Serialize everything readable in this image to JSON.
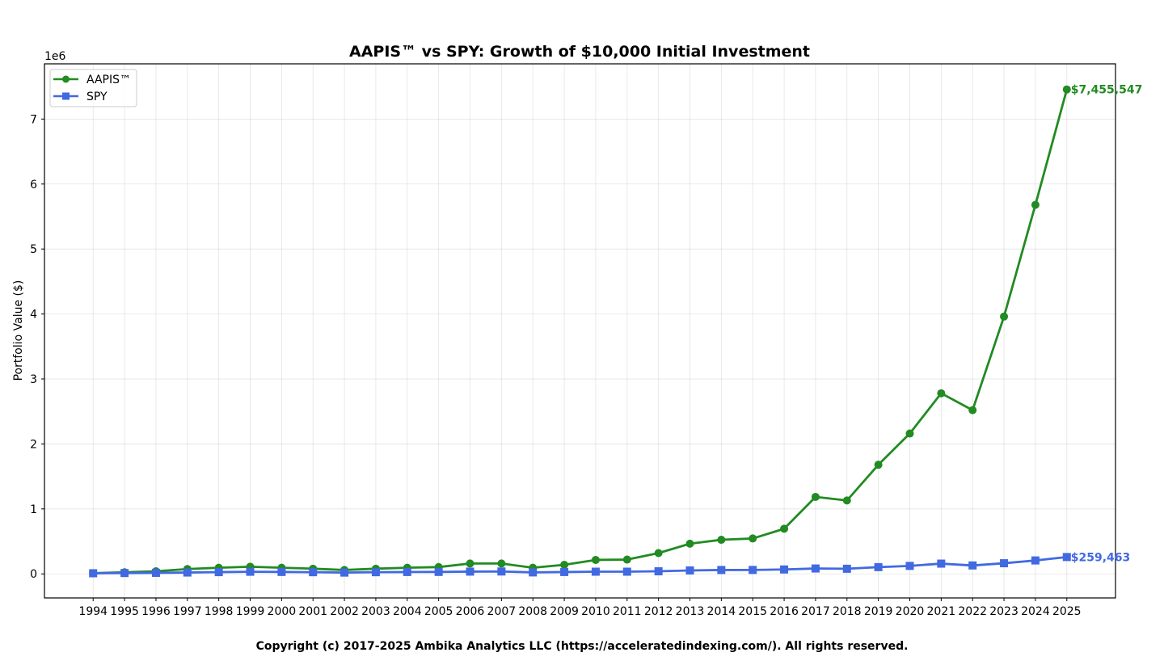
{
  "chart_data": {
    "type": "line",
    "title": "AAPIS™ vs SPY: Growth of $10,000 Initial Investment",
    "xlabel": "",
    "ylabel": "Portfolio Value ($)",
    "y_offset_label": "1e6",
    "y_scale_factor": 1000000,
    "ylim": [
      -370000,
      7850000
    ],
    "xlim": [
      1992.45,
      2026.55
    ],
    "y_ticks": [
      0,
      1,
      2,
      3,
      4,
      5,
      6,
      7
    ],
    "grid": true,
    "legend_position": "top-left",
    "x": [
      1994,
      1995,
      1996,
      1997,
      1998,
      1999,
      2000,
      2001,
      2002,
      2003,
      2004,
      2005,
      2006,
      2007,
      2008,
      2009,
      2010,
      2011,
      2012,
      2013,
      2014,
      2015,
      2016,
      2017,
      2018,
      2019,
      2020,
      2021,
      2022,
      2023,
      2024,
      2025
    ],
    "series": [
      {
        "name": "AAPIS™",
        "color": "#228b22",
        "marker": "circle",
        "values": [
          10000,
          25000,
          40000,
          75000,
          95000,
          110000,
          95000,
          80000,
          60000,
          80000,
          95000,
          105000,
          160000,
          160000,
          95000,
          140000,
          215000,
          220000,
          320000,
          465000,
          525000,
          545000,
          695000,
          1185000,
          1130000,
          1680000,
          2160000,
          2780000,
          2520000,
          3960000,
          5680000,
          7455547
        ]
      },
      {
        "name": "SPY",
        "color": "#4169e1",
        "marker": "square",
        "values": [
          10000,
          13000,
          16000,
          21000,
          27000,
          33000,
          30000,
          26000,
          20000,
          26000,
          29000,
          30000,
          35000,
          37000,
          23000,
          29000,
          34000,
          34000,
          40000,
          53000,
          60000,
          61000,
          68000,
          83000,
          79000,
          104000,
          123000,
          158000,
          130000,
          164000,
          207000,
          259463
        ]
      }
    ],
    "annotations": [
      {
        "series": "AAPIS™",
        "x": 2025,
        "text": "$7,455,547"
      },
      {
        "series": "SPY",
        "x": 2025,
        "text": "$259,463"
      }
    ]
  },
  "footer": "Copyright (c) 2017-2025 Ambika Analytics LLC (https://acceleratedindexing.com/). All rights reserved."
}
